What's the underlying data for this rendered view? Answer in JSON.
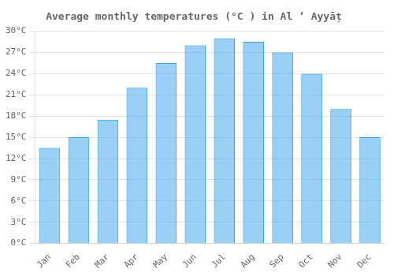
{
  "chart_data": {
    "type": "bar",
    "title": "Average monthly temperatures (°C ) in Al ‘ Ayyāṭ",
    "categories": [
      "Jan",
      "Feb",
      "Mar",
      "Apr",
      "May",
      "Jun",
      "Jul",
      "Aug",
      "Sep",
      "Oct",
      "Nov",
      "Dec"
    ],
    "values": [
      13.5,
      15.0,
      17.5,
      22.0,
      25.5,
      28.0,
      29.0,
      28.5,
      27.0,
      24.0,
      19.0,
      15.0
    ],
    "ylim": [
      0,
      30
    ],
    "yticks": [
      {
        "value": 0,
        "label": "0°C"
      },
      {
        "value": 3,
        "label": "3°C"
      },
      {
        "value": 6,
        "label": "6°C"
      },
      {
        "value": 9,
        "label": "9°C"
      },
      {
        "value": 12,
        "label": "12°C"
      },
      {
        "value": 15,
        "label": "15°C"
      },
      {
        "value": 18,
        "label": "18°C"
      },
      {
        "value": 21,
        "label": "21°C"
      },
      {
        "value": 24,
        "label": "24°C"
      },
      {
        "value": 27,
        "label": "27°C"
      },
      {
        "value": 30,
        "label": "30°C"
      }
    ],
    "grid": true
  }
}
